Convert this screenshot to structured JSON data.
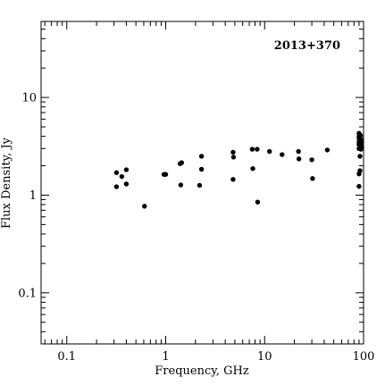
{
  "chart_data": {
    "type": "scatter",
    "title": "2013+370",
    "xlabel": "Frequency, GHz",
    "ylabel": "Flux Density, Jy",
    "xscale": "log",
    "yscale": "log",
    "xlim": [
      0.055,
      100
    ],
    "ylim": [
      0.03,
      60
    ],
    "xticks": [
      {
        "value": 0.1,
        "label": "0.1"
      },
      {
        "value": 1,
        "label": "1"
      },
      {
        "value": 10,
        "label": "10"
      },
      {
        "value": 100,
        "label": "100"
      }
    ],
    "yticks": [
      {
        "value": 0.1,
        "label": "0.1"
      },
      {
        "value": 1,
        "label": "1"
      },
      {
        "value": 10,
        "label": "10"
      }
    ],
    "grid": false,
    "legend": "none",
    "title_position": "top-right",
    "marker_color": "#000000",
    "points": [
      [
        0.318,
        1.7
      ],
      [
        0.318,
        1.22
      ],
      [
        0.36,
        1.55
      ],
      [
        0.4,
        1.82
      ],
      [
        0.4,
        1.3
      ],
      [
        0.61,
        0.77
      ],
      [
        0.96,
        1.63
      ],
      [
        1.0,
        1.63
      ],
      [
        1.4,
        2.1
      ],
      [
        1.45,
        2.15
      ],
      [
        1.42,
        1.27
      ],
      [
        2.2,
        1.26
      ],
      [
        2.3,
        2.5
      ],
      [
        2.3,
        1.84
      ],
      [
        4.8,
        2.75
      ],
      [
        4.85,
        2.45
      ],
      [
        4.8,
        1.45
      ],
      [
        7.5,
        2.95
      ],
      [
        7.6,
        1.87
      ],
      [
        8.4,
        2.95
      ],
      [
        8.5,
        0.85
      ],
      [
        11.2,
        2.8
      ],
      [
        15.0,
        2.6
      ],
      [
        22.0,
        2.8
      ],
      [
        22.2,
        2.35
      ],
      [
        30.0,
        2.3
      ],
      [
        30.5,
        1.48
      ],
      [
        43.0,
        2.9
      ],
      [
        90.0,
        3.0
      ],
      [
        90.0,
        3.3
      ],
      [
        90.0,
        3.5
      ],
      [
        90.0,
        3.8
      ],
      [
        90.0,
        4.0
      ],
      [
        90.0,
        4.3
      ],
      [
        90.0,
        1.65
      ],
      [
        90.0,
        1.23
      ],
      [
        92.0,
        1.78
      ],
      [
        92.0,
        2.5
      ],
      [
        93.0,
        3.2
      ],
      [
        93.0,
        3.6
      ],
      [
        93.0,
        4.1
      ],
      [
        94.0,
        2.95
      ],
      [
        95.0,
        3.05
      ],
      [
        95.0,
        3.4
      ],
      [
        95.0,
        3.7
      ],
      [
        96.0,
        3.1
      ]
    ]
  }
}
